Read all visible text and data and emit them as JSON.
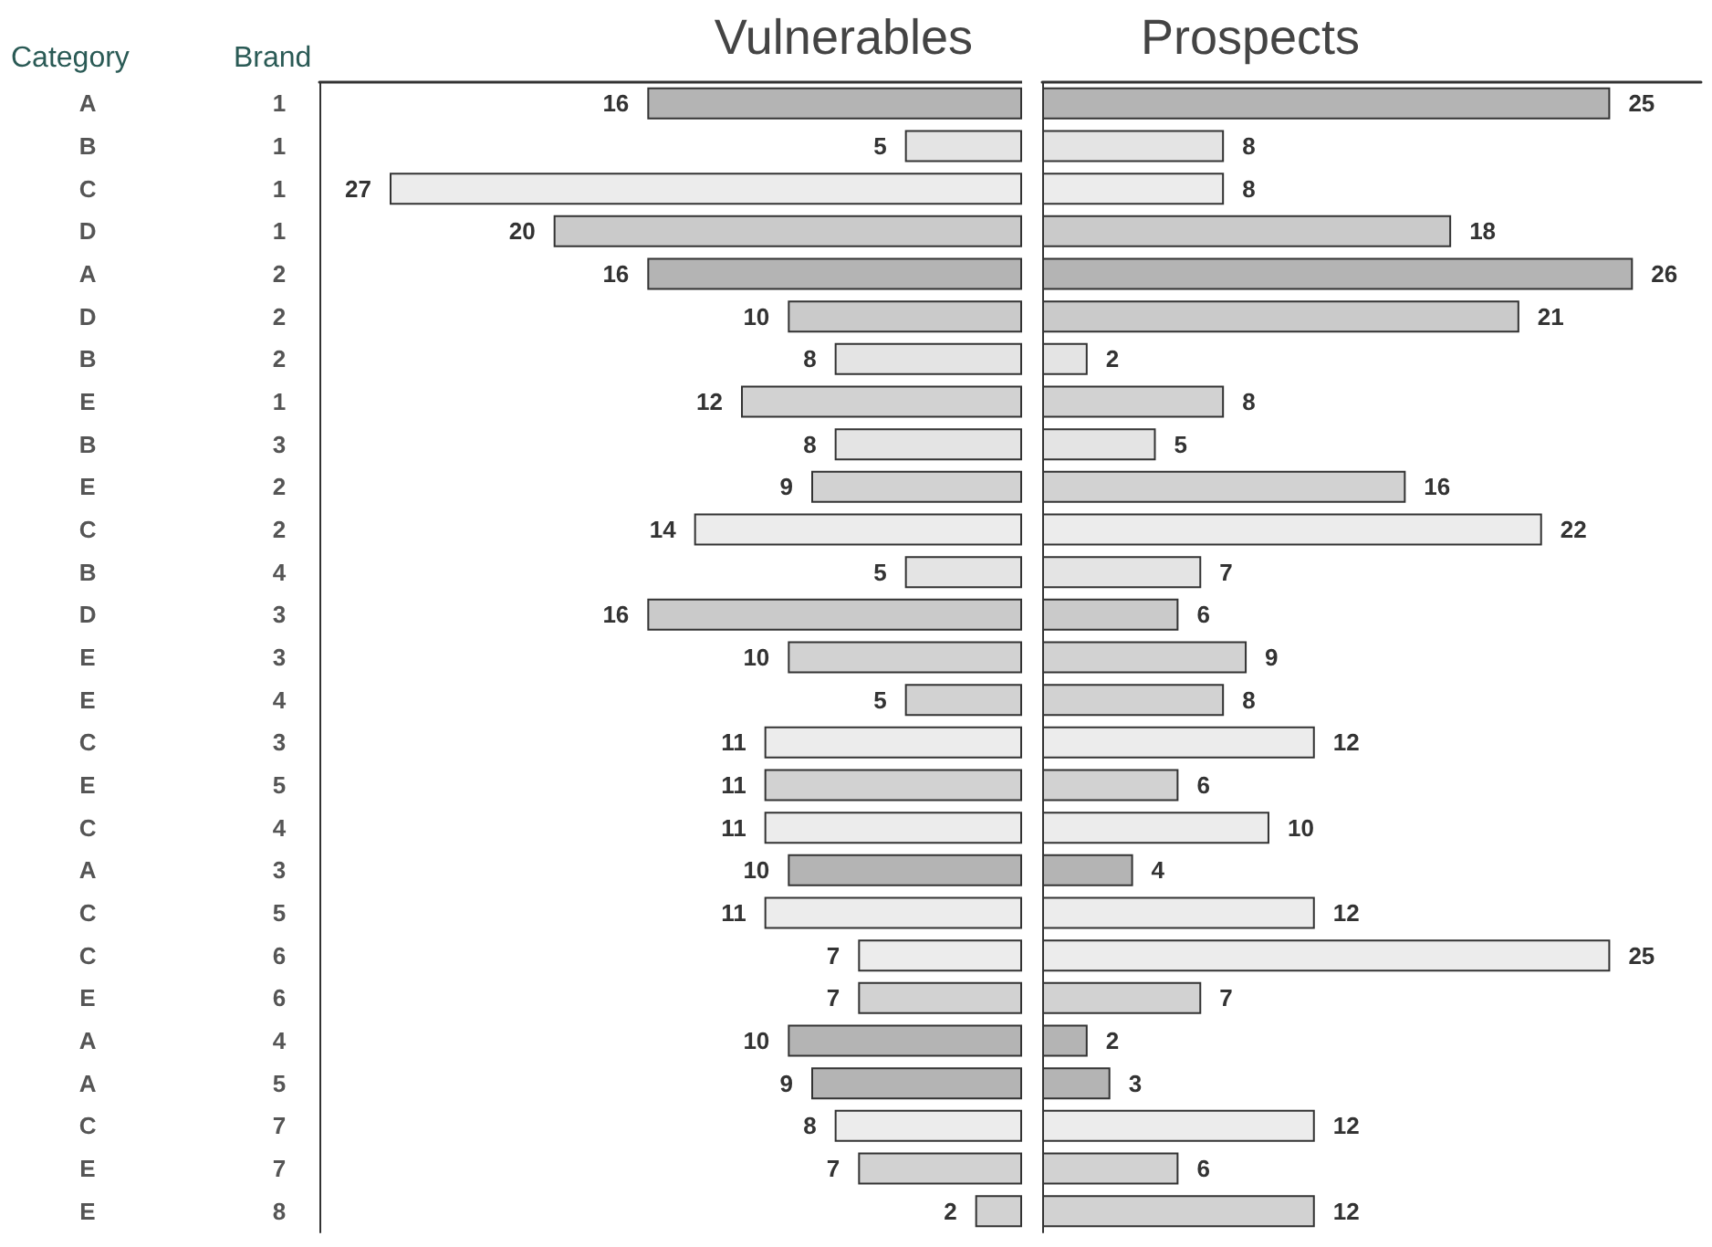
{
  "chart_data": [
    {
      "type": "bar",
      "orientation": "horizontal",
      "title": "Vulnerables",
      "ylabel": "Category",
      "y2label": "Brand",
      "categories": [
        "A",
        "B",
        "C",
        "D",
        "A",
        "D",
        "B",
        "E",
        "B",
        "E",
        "C",
        "B",
        "D",
        "E",
        "E",
        "C",
        "E",
        "C",
        "A",
        "C",
        "C",
        "E",
        "A",
        "A",
        "C",
        "E",
        "E"
      ],
      "y2_categories": [
        "1",
        "1",
        "1",
        "1",
        "2",
        "2",
        "2",
        "1",
        "3",
        "2",
        "2",
        "4",
        "3",
        "3",
        "4",
        "3",
        "5",
        "4",
        "3",
        "5",
        "6",
        "6",
        "4",
        "5",
        "7",
        "7",
        "8"
      ],
      "xlim": [
        30,
        0
      ],
      "colors": [
        "#b4b4b4",
        "#e4e4e4",
        "#ececec",
        "#cacaca",
        "#b4b4b4",
        "#cacaca",
        "#e4e4e4",
        "#d2d2d2",
        "#e4e4e4",
        "#d2d2d2",
        "#ececec",
        "#e4e4e4",
        "#cacaca",
        "#d2d2d2",
        "#d2d2d2",
        "#ececec",
        "#d2d2d2",
        "#ececec",
        "#b4b4b4",
        "#ececec",
        "#ececec",
        "#d2d2d2",
        "#b4b4b4",
        "#b4b4b4",
        "#ececec",
        "#d2d2d2",
        "#d2d2d2"
      ],
      "values": [
        16,
        5,
        27,
        20,
        16,
        10,
        8,
        12,
        8,
        9,
        14,
        5,
        16,
        10,
        5,
        11,
        11,
        11,
        10,
        11,
        7,
        7,
        10,
        9,
        8,
        7,
        2
      ],
      "data_labels": true,
      "grid": false
    },
    {
      "type": "bar",
      "orientation": "horizontal",
      "title": "Prospects",
      "categories": [
        null,
        null,
        null,
        null,
        null,
        null,
        null,
        null,
        null,
        null,
        null,
        null,
        null,
        null,
        null,
        null,
        null,
        null,
        null,
        null,
        null,
        null,
        null,
        null,
        null,
        null,
        null
      ],
      "xlim": [
        0,
        29
      ],
      "colors": [
        "#b4b4b4",
        "#e4e4e4",
        "#ececec",
        "#cacaca",
        "#b4b4b4",
        "#cacaca",
        "#e4e4e4",
        "#d2d2d2",
        "#e4e4e4",
        "#d2d2d2",
        "#ececec",
        "#e4e4e4",
        "#cacaca",
        "#d2d2d2",
        "#d2d2d2",
        "#ececec",
        "#d2d2d2",
        "#ececec",
        "#b4b4b4",
        "#ececec",
        "#ececec",
        "#d2d2d2",
        "#b4b4b4",
        "#b4b4b4",
        "#ececec",
        "#d2d2d2",
        "#d2d2d2"
      ],
      "values": [
        25,
        8,
        8,
        18,
        26,
        21,
        2,
        8,
        5,
        16,
        22,
        7,
        6,
        9,
        8,
        12,
        6,
        10,
        4,
        12,
        25,
        7,
        2,
        3,
        12,
        6,
        12
      ],
      "data_labels": true,
      "grid": false
    }
  ]
}
